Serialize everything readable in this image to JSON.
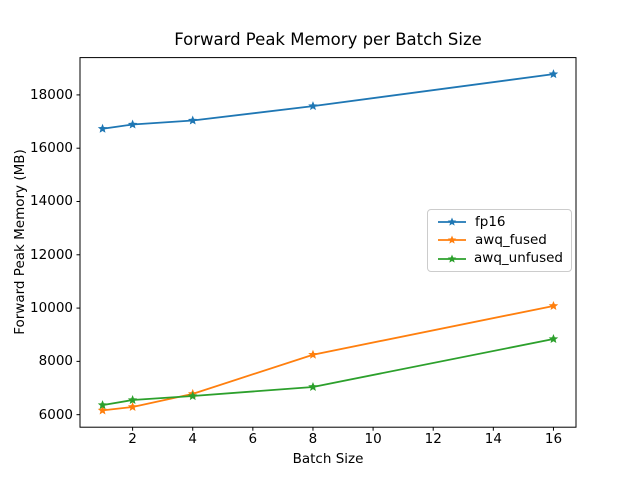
{
  "chart_data": {
    "type": "line",
    "title": "Forward Peak Memory per Batch Size",
    "xlabel": "Batch Size",
    "ylabel": "Forward Peak Memory (MB)",
    "x": [
      1,
      2,
      4,
      8,
      16
    ],
    "series": [
      {
        "name": "fp16",
        "color": "#1f77b4",
        "marker": "star",
        "values": [
          16730,
          16890,
          17040,
          17580,
          18780
        ]
      },
      {
        "name": "awq_fused",
        "color": "#ff7f0e",
        "marker": "star",
        "values": [
          6160,
          6290,
          6780,
          8250,
          10080
        ]
      },
      {
        "name": "awq_unfused",
        "color": "#2ca02c",
        "marker": "star",
        "values": [
          6360,
          6550,
          6700,
          7040,
          8840
        ]
      }
    ],
    "xticks": [
      2,
      4,
      6,
      8,
      10,
      12,
      14,
      16
    ],
    "yticks": [
      6000,
      8000,
      10000,
      12000,
      14000,
      16000,
      18000
    ],
    "xlim": [
      0.25,
      16.75
    ],
    "ylim": [
      5530,
      19400
    ],
    "grid": false,
    "legend_position": "center-right",
    "axis_color": "#000000",
    "background_color": "#ffffff"
  }
}
